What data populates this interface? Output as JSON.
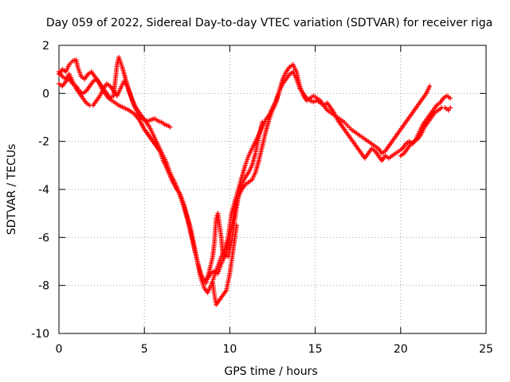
{
  "chart_data": {
    "type": "scatter",
    "title": "Day 059 of 2022, Sidereal Day-to-day VTEC variation (SDTVAR) for receiver riga",
    "xlabel": "GPS time / hours",
    "ylabel": "SDTVAR / TECUs",
    "xlim": [
      0,
      25
    ],
    "ylim": [
      -10,
      2
    ],
    "xticks": [
      0,
      5,
      10,
      15,
      20,
      25
    ],
    "yticks": [
      -10,
      -8,
      -6,
      -4,
      -2,
      0,
      2
    ],
    "grid": true,
    "marker": "+",
    "color": "#ff0000",
    "series": [
      {
        "points": [
          [
            0.0,
            0.8
          ],
          [
            0.2,
            1.0
          ],
          [
            0.4,
            0.9
          ],
          [
            0.6,
            1.2
          ],
          [
            0.8,
            1.35
          ],
          [
            1.0,
            1.4
          ],
          [
            1.1,
            1.1
          ],
          [
            1.3,
            0.7
          ],
          [
            1.5,
            0.6
          ],
          [
            1.7,
            0.8
          ],
          [
            1.9,
            0.9
          ],
          [
            2.1,
            0.7
          ],
          [
            2.3,
            0.5
          ],
          [
            2.5,
            0.2
          ],
          [
            2.7,
            0.0
          ],
          [
            2.9,
            -0.2
          ],
          [
            3.1,
            -0.3
          ],
          [
            3.3,
            -0.4
          ],
          [
            3.5,
            -0.5
          ],
          [
            3.8,
            -0.6
          ],
          [
            4.1,
            -0.7
          ],
          [
            4.4,
            -0.85
          ],
          [
            4.7,
            -1.1
          ],
          [
            5.0,
            -1.5
          ],
          [
            5.3,
            -1.8
          ],
          [
            5.6,
            -2.1
          ],
          [
            5.9,
            -2.4
          ],
          [
            6.1,
            -2.8
          ],
          [
            6.3,
            -3.1
          ],
          [
            6.6,
            -3.6
          ],
          [
            6.9,
            -4.0
          ],
          [
            7.1,
            -4.2
          ],
          [
            7.3,
            -4.6
          ],
          [
            7.5,
            -5.1
          ],
          [
            7.7,
            -5.6
          ],
          [
            7.9,
            -6.3
          ],
          [
            8.1,
            -7.0
          ],
          [
            8.3,
            -7.7
          ],
          [
            8.5,
            -8.1
          ],
          [
            8.7,
            -8.3
          ],
          [
            8.9,
            -8.0
          ],
          [
            9.1,
            -7.6
          ],
          [
            9.3,
            -7.2
          ],
          [
            9.5,
            -6.8
          ],
          [
            9.7,
            -6.5
          ],
          [
            9.9,
            -6.0
          ],
          [
            10.1,
            -5.0
          ],
          [
            10.3,
            -4.5
          ],
          [
            10.5,
            -4.0
          ],
          [
            10.7,
            -3.5
          ],
          [
            10.9,
            -3.0
          ],
          [
            11.1,
            -2.6
          ],
          [
            11.3,
            -2.3
          ],
          [
            11.5,
            -2.0
          ],
          [
            11.7,
            -1.7
          ],
          [
            11.9,
            -1.4
          ],
          [
            12.1,
            -1.1
          ],
          [
            12.3,
            -0.9
          ],
          [
            12.5,
            -0.6
          ],
          [
            12.7,
            -0.3
          ],
          [
            12.9,
            0.1
          ],
          [
            13.1,
            0.4
          ],
          [
            13.3,
            0.6
          ],
          [
            13.5,
            0.8
          ],
          [
            13.7,
            0.9
          ],
          [
            13.9,
            0.6
          ],
          [
            14.1,
            0.2
          ],
          [
            14.3,
            0.0
          ],
          [
            14.5,
            -0.2
          ],
          [
            14.7,
            -0.3
          ],
          [
            14.9,
            -0.35
          ],
          [
            15.1,
            -0.3
          ],
          [
            15.3,
            -0.4
          ],
          [
            15.5,
            -0.5
          ],
          [
            15.7,
            -0.7
          ],
          [
            15.9,
            -0.8
          ],
          [
            16.1,
            -0.9
          ],
          [
            16.3,
            -1.0
          ],
          [
            16.5,
            -1.1
          ],
          [
            16.7,
            -1.2
          ],
          [
            16.9,
            -1.35
          ],
          [
            17.1,
            -1.5
          ],
          [
            17.3,
            -1.6
          ],
          [
            17.5,
            -1.7
          ],
          [
            17.7,
            -1.8
          ],
          [
            17.9,
            -1.9
          ],
          [
            18.1,
            -2.0
          ],
          [
            18.3,
            -2.1
          ],
          [
            18.5,
            -2.2
          ],
          [
            18.7,
            -2.3
          ],
          [
            18.9,
            -2.5
          ],
          [
            19.1,
            -2.4
          ],
          [
            19.3,
            -2.2
          ],
          [
            19.5,
            -2.0
          ],
          [
            19.7,
            -1.8
          ],
          [
            19.9,
            -1.6
          ],
          [
            20.1,
            -1.4
          ],
          [
            20.3,
            -1.2
          ],
          [
            20.5,
            -1.0
          ],
          [
            20.7,
            -0.8
          ],
          [
            20.9,
            -0.6
          ],
          [
            21.1,
            -0.4
          ],
          [
            21.3,
            -0.2
          ],
          [
            21.5,
            0.0
          ],
          [
            21.7,
            0.3
          ]
        ]
      },
      {
        "points": [
          [
            0.0,
            0.4
          ],
          [
            0.2,
            0.3
          ],
          [
            0.4,
            0.5
          ],
          [
            0.6,
            0.6
          ],
          [
            0.8,
            0.4
          ],
          [
            1.0,
            0.3
          ],
          [
            1.2,
            0.1
          ],
          [
            1.4,
            0.0
          ],
          [
            1.6,
            0.1
          ],
          [
            1.8,
            0.3
          ],
          [
            2.0,
            0.5
          ],
          [
            2.2,
            0.6
          ],
          [
            2.4,
            0.4
          ],
          [
            2.6,
            0.2
          ],
          [
            2.8,
            0.0
          ],
          [
            3.0,
            -0.2
          ],
          [
            3.2,
            -0.1
          ],
          [
            3.4,
            1.2
          ],
          [
            3.5,
            1.5
          ],
          [
            3.7,
            1.1
          ],
          [
            3.9,
            0.6
          ],
          [
            4.1,
            0.1
          ],
          [
            4.3,
            -0.3
          ],
          [
            4.5,
            -0.6
          ],
          [
            4.7,
            -0.8
          ],
          [
            4.9,
            -1.0
          ],
          [
            5.1,
            -1.2
          ],
          [
            5.3,
            -1.4
          ],
          [
            5.5,
            -1.7
          ],
          [
            5.7,
            -2.0
          ],
          [
            5.9,
            -2.3
          ],
          [
            6.1,
            -2.6
          ],
          [
            6.3,
            -2.9
          ],
          [
            6.5,
            -3.3
          ],
          [
            6.7,
            -3.6
          ],
          [
            6.9,
            -3.9
          ],
          [
            7.1,
            -4.3
          ],
          [
            7.3,
            -4.7
          ],
          [
            7.5,
            -5.2
          ],
          [
            7.7,
            -5.8
          ],
          [
            7.9,
            -6.4
          ],
          [
            8.1,
            -7.0
          ],
          [
            8.3,
            -7.5
          ],
          [
            8.5,
            -7.8
          ],
          [
            8.7,
            -7.7
          ],
          [
            8.9,
            -7.5
          ],
          [
            9.1,
            -7.4
          ],
          [
            9.3,
            -7.5
          ],
          [
            9.5,
            -7.1
          ],
          [
            9.7,
            -6.8
          ],
          [
            9.9,
            -6.4
          ],
          [
            10.1,
            -5.6
          ],
          [
            10.3,
            -4.8
          ],
          [
            10.5,
            -4.3
          ],
          [
            10.7,
            -4.0
          ],
          [
            10.9,
            -3.8
          ],
          [
            11.1,
            -3.7
          ],
          [
            11.3,
            -3.6
          ],
          [
            11.5,
            -3.3
          ],
          [
            11.7,
            -2.8
          ],
          [
            11.9,
            -2.2
          ],
          [
            12.1,
            -1.6
          ],
          [
            12.3,
            -1.1
          ],
          [
            12.5,
            -0.7
          ],
          [
            12.7,
            -0.4
          ],
          [
            12.9,
            0.1
          ],
          [
            13.1,
            0.6
          ],
          [
            13.3,
            0.9
          ],
          [
            13.5,
            1.1
          ],
          [
            13.7,
            1.2
          ],
          [
            13.9,
            0.9
          ],
          [
            14.1,
            0.3
          ],
          [
            14.3,
            -0.1
          ],
          [
            14.5,
            -0.3
          ],
          [
            14.7,
            -0.2
          ],
          [
            14.9,
            -0.1
          ],
          [
            15.1,
            -0.2
          ],
          [
            15.3,
            -0.3
          ],
          [
            15.5,
            -0.5
          ],
          [
            15.7,
            -0.4
          ],
          [
            15.9,
            -0.6
          ],
          [
            16.1,
            -0.8
          ],
          [
            16.3,
            -1.1
          ],
          [
            16.5,
            -1.3
          ],
          [
            16.7,
            -1.5
          ],
          [
            16.9,
            -1.7
          ],
          [
            17.1,
            -1.9
          ],
          [
            17.3,
            -2.1
          ],
          [
            17.5,
            -2.3
          ],
          [
            17.7,
            -2.5
          ],
          [
            17.9,
            -2.7
          ],
          [
            18.1,
            -2.5
          ],
          [
            18.3,
            -2.3
          ],
          [
            18.5,
            -2.4
          ],
          [
            18.7,
            -2.6
          ],
          [
            18.9,
            -2.8
          ],
          [
            19.1,
            -2.6
          ],
          [
            19.3,
            -2.7
          ],
          [
            19.5,
            -2.6
          ],
          [
            19.7,
            -2.5
          ],
          [
            19.9,
            -2.4
          ],
          [
            20.1,
            -2.3
          ],
          [
            20.3,
            -2.1
          ],
          [
            20.5,
            -2.0
          ],
          [
            20.7,
            -2.1
          ],
          [
            20.9,
            -1.9
          ],
          [
            21.1,
            -1.6
          ],
          [
            21.3,
            -1.3
          ],
          [
            21.5,
            -1.1
          ],
          [
            21.7,
            -0.9
          ],
          [
            21.9,
            -0.7
          ],
          [
            22.1,
            -0.5
          ],
          [
            22.3,
            -0.4
          ],
          [
            22.5,
            -0.2
          ],
          [
            22.7,
            -0.1
          ],
          [
            22.9,
            -0.2
          ]
        ]
      },
      {
        "points": [
          [
            0.0,
            0.9
          ],
          [
            0.2,
            0.7
          ],
          [
            0.4,
            0.6
          ],
          [
            0.6,
            0.8
          ],
          [
            0.8,
            0.5
          ],
          [
            1.0,
            0.2
          ],
          [
            1.2,
            0.0
          ],
          [
            1.4,
            -0.2
          ],
          [
            1.6,
            -0.4
          ],
          [
            1.8,
            -0.5
          ],
          [
            2.0,
            -0.5
          ],
          [
            2.2,
            -0.3
          ],
          [
            2.4,
            -0.1
          ],
          [
            2.6,
            0.2
          ],
          [
            2.8,
            0.4
          ],
          [
            3.0,
            0.3
          ],
          [
            3.2,
            0.1
          ],
          [
            3.4,
            -0.1
          ],
          [
            3.6,
            0.2
          ],
          [
            3.8,
            0.5
          ],
          [
            4.0,
            0.3
          ],
          [
            4.2,
            -0.1
          ],
          [
            4.4,
            -0.5
          ],
          [
            4.6,
            -0.8
          ],
          [
            4.8,
            -1.0
          ],
          [
            5.0,
            -1.1
          ],
          [
            5.2,
            -1.15
          ],
          [
            5.4,
            -1.1
          ],
          [
            5.6,
            -1.05
          ],
          [
            5.8,
            -1.15
          ],
          [
            6.0,
            -1.2
          ],
          [
            6.2,
            -1.3
          ],
          [
            6.4,
            -1.35
          ],
          [
            6.5,
            -1.4
          ],
          [
            8.6,
            -7.9
          ],
          [
            8.8,
            -7.4
          ],
          [
            9.0,
            -6.8
          ],
          [
            9.1,
            -6.2
          ],
          [
            9.2,
            -5.2
          ],
          [
            9.3,
            -5.0
          ],
          [
            9.5,
            -6.0
          ],
          [
            9.6,
            -6.8
          ],
          [
            9.7,
            -6.7
          ],
          [
            9.9,
            -6.8
          ],
          [
            10.1,
            -6.2
          ],
          [
            10.3,
            -5.2
          ],
          [
            10.5,
            -4.3
          ],
          [
            10.7,
            -3.8
          ],
          [
            10.9,
            -3.5
          ],
          [
            11.1,
            -3.3
          ],
          [
            11.3,
            -3.0
          ],
          [
            11.5,
            -2.5
          ],
          [
            11.7,
            -1.8
          ],
          [
            11.8,
            -1.5
          ],
          [
            11.9,
            -1.2
          ],
          [
            20.0,
            -2.6
          ],
          [
            20.2,
            -2.5
          ],
          [
            20.4,
            -2.3
          ],
          [
            20.6,
            -2.1
          ],
          [
            20.8,
            -2.0
          ],
          [
            21.0,
            -1.9
          ],
          [
            21.2,
            -1.7
          ],
          [
            21.4,
            -1.4
          ],
          [
            21.6,
            -1.2
          ],
          [
            21.8,
            -1.0
          ],
          [
            22.0,
            -0.8
          ],
          [
            22.2,
            -0.7
          ],
          [
            22.4,
            -0.6
          ],
          [
            22.6,
            -0.6
          ],
          [
            22.8,
            -0.7
          ],
          [
            22.9,
            -0.6
          ]
        ]
      },
      {
        "points": [
          [
            9.0,
            -7.9
          ],
          [
            9.1,
            -8.4
          ],
          [
            9.2,
            -8.8
          ],
          [
            9.4,
            -8.6
          ],
          [
            9.6,
            -8.4
          ],
          [
            9.8,
            -8.2
          ],
          [
            10.0,
            -7.5
          ],
          [
            10.2,
            -6.5
          ],
          [
            10.4,
            -5.5
          ]
        ]
      }
    ]
  }
}
